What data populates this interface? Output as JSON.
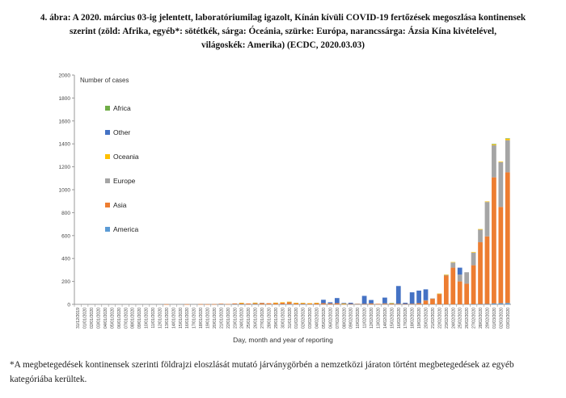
{
  "caption": {
    "line1": "4. ábra: A 2020. március 03-ig jelentett, laboratóriumilag igazolt, Kínán kívüli COVID-19 fertőzések megoszlása kontinensek",
    "line2": "szerint (zöld: Afrika, egyéb*: sötétkék, sárga: Óceánia, szürke: Európa, narancssárga: Ázsia Kína kivételével,",
    "line3": "világoskék: Amerika) (ECDC, 2020.03.03)"
  },
  "footnote": {
    "line1": "*A megbetegedések kontinensek szerinti földrajzi eloszlását mutató járványgörbén a nemzetközi járaton történt megbetegedések az egyéb",
    "line2": "kategóriába kerültek."
  },
  "chart_data": {
    "type": "bar",
    "stacked": true,
    "ylabel": "Number of cases",
    "xlabel": "Day, month and year of reporting",
    "ylim": [
      0,
      2000
    ],
    "yticks": [
      0,
      200,
      400,
      600,
      800,
      1000,
      1200,
      1400,
      1600,
      1800,
      2000
    ],
    "grid": false,
    "legend_position": "left-inside",
    "categories": [
      "31/12/2019",
      "01/01/2020",
      "02/01/2020",
      "03/01/2020",
      "04/01/2020",
      "05/01/2020",
      "06/01/2020",
      "07/01/2020",
      "08/01/2020",
      "09/01/2020",
      "10/01/2020",
      "11/01/2020",
      "12/01/2020",
      "13/01/2020",
      "14/01/2020",
      "15/01/2020",
      "16/01/2020",
      "17/01/2020",
      "18/01/2020",
      "19/01/2020",
      "20/01/2020",
      "21/01/2020",
      "22/01/2020",
      "23/01/2020",
      "24/01/2020",
      "25/01/2020",
      "26/01/2020",
      "27/01/2020",
      "28/01/2020",
      "29/01/2020",
      "30/01/2020",
      "31/01/2020",
      "01/02/2020",
      "02/02/2020",
      "03/02/2020",
      "04/02/2020",
      "05/02/2020",
      "06/02/2020",
      "07/02/2020",
      "08/02/2020",
      "09/02/2020",
      "10/02/2020",
      "11/02/2020",
      "12/02/2020",
      "13/02/2020",
      "14/02/2020",
      "15/02/2020",
      "16/02/2020",
      "17/02/2020",
      "18/02/2020",
      "19/02/2020",
      "20/02/2020",
      "21/02/2020",
      "22/02/2020",
      "23/02/2020",
      "24/02/2020",
      "25/02/2020",
      "26/02/2020",
      "27/02/2020",
      "28/02/2020",
      "29/02/2020",
      "01/03/2020",
      "02/03/2020",
      "03/03/2020"
    ],
    "series": [
      {
        "name": "America",
        "color": "#5b9bd5",
        "values": [
          0,
          0,
          0,
          0,
          0,
          0,
          0,
          0,
          0,
          0,
          0,
          0,
          0,
          0,
          0,
          0,
          0,
          0,
          0,
          0,
          0,
          1,
          0,
          1,
          1,
          0,
          1,
          0,
          0,
          0,
          1,
          1,
          0,
          1,
          0,
          0,
          0,
          0,
          0,
          0,
          0,
          0,
          0,
          0,
          0,
          0,
          0,
          0,
          0,
          0,
          0,
          0,
          0,
          0,
          0,
          0,
          0,
          0,
          1,
          2,
          3,
          8,
          10,
          12
        ]
      },
      {
        "name": "Asia",
        "color": "#ed7d31",
        "values": [
          0,
          0,
          0,
          0,
          0,
          0,
          0,
          0,
          0,
          0,
          0,
          0,
          0,
          1,
          0,
          0,
          1,
          0,
          2,
          1,
          2,
          5,
          3,
          7,
          9,
          8,
          10,
          12,
          10,
          12,
          14,
          18,
          12,
          10,
          8,
          12,
          10,
          8,
          10,
          6,
          4,
          5,
          4,
          8,
          5,
          8,
          10,
          5,
          4,
          5,
          10,
          35,
          50,
          90,
          250,
          320,
          200,
          180,
          340,
          540,
          590,
          1100,
          840,
          1140
        ]
      },
      {
        "name": "Europe",
        "color": "#a5a5a5",
        "values": [
          0,
          0,
          0,
          0,
          0,
          0,
          0,
          0,
          0,
          0,
          0,
          0,
          0,
          0,
          0,
          0,
          0,
          0,
          0,
          0,
          0,
          0,
          0,
          0,
          3,
          0,
          1,
          2,
          0,
          2,
          0,
          3,
          1,
          1,
          0,
          1,
          0,
          0,
          0,
          0,
          0,
          1,
          0,
          0,
          0,
          1,
          0,
          0,
          0,
          0,
          0,
          1,
          2,
          3,
          8,
          45,
          60,
          100,
          110,
          110,
          300,
          280,
          390,
          280
        ]
      },
      {
        "name": "Oceania",
        "color": "#ffc000",
        "values": [
          0,
          0,
          0,
          0,
          0,
          0,
          0,
          0,
          0,
          0,
          0,
          0,
          0,
          0,
          0,
          0,
          0,
          0,
          0,
          0,
          0,
          0,
          0,
          0,
          1,
          0,
          3,
          0,
          0,
          1,
          3,
          1,
          1,
          1,
          2,
          1,
          0,
          0,
          0,
          1,
          0,
          0,
          0,
          0,
          0,
          0,
          0,
          0,
          0,
          0,
          0,
          0,
          0,
          1,
          1,
          4,
          0,
          0,
          5,
          5,
          5,
          10,
          5,
          15
        ]
      },
      {
        "name": "Other",
        "color": "#4472c4",
        "values": [
          0,
          0,
          0,
          0,
          0,
          0,
          0,
          0,
          0,
          0,
          0,
          0,
          0,
          0,
          0,
          0,
          0,
          0,
          0,
          0,
          0,
          0,
          0,
          0,
          0,
          0,
          0,
          0,
          0,
          0,
          0,
          0,
          0,
          0,
          0,
          0,
          30,
          10,
          45,
          5,
          10,
          0,
          70,
          30,
          0,
          50,
          0,
          155,
          10,
          100,
          110,
          95,
          0,
          0,
          0,
          0,
          60,
          0,
          0,
          0,
          0,
          0,
          0,
          0
        ]
      },
      {
        "name": "Africa",
        "color": "#70ad47",
        "values": [
          0,
          0,
          0,
          0,
          0,
          0,
          0,
          0,
          0,
          0,
          0,
          0,
          0,
          0,
          0,
          0,
          0,
          0,
          0,
          0,
          0,
          0,
          0,
          0,
          0,
          0,
          0,
          0,
          0,
          0,
          0,
          0,
          0,
          0,
          0,
          0,
          0,
          0,
          0,
          0,
          0,
          0,
          0,
          0,
          0,
          0,
          1,
          0,
          0,
          0,
          0,
          0,
          0,
          0,
          0,
          0,
          0,
          0,
          0,
          0,
          0,
          1,
          0,
          1
        ]
      }
    ],
    "legend": [
      "Africa",
      "Other",
      "Oceania",
      "Europe",
      "Asia",
      "America"
    ]
  }
}
